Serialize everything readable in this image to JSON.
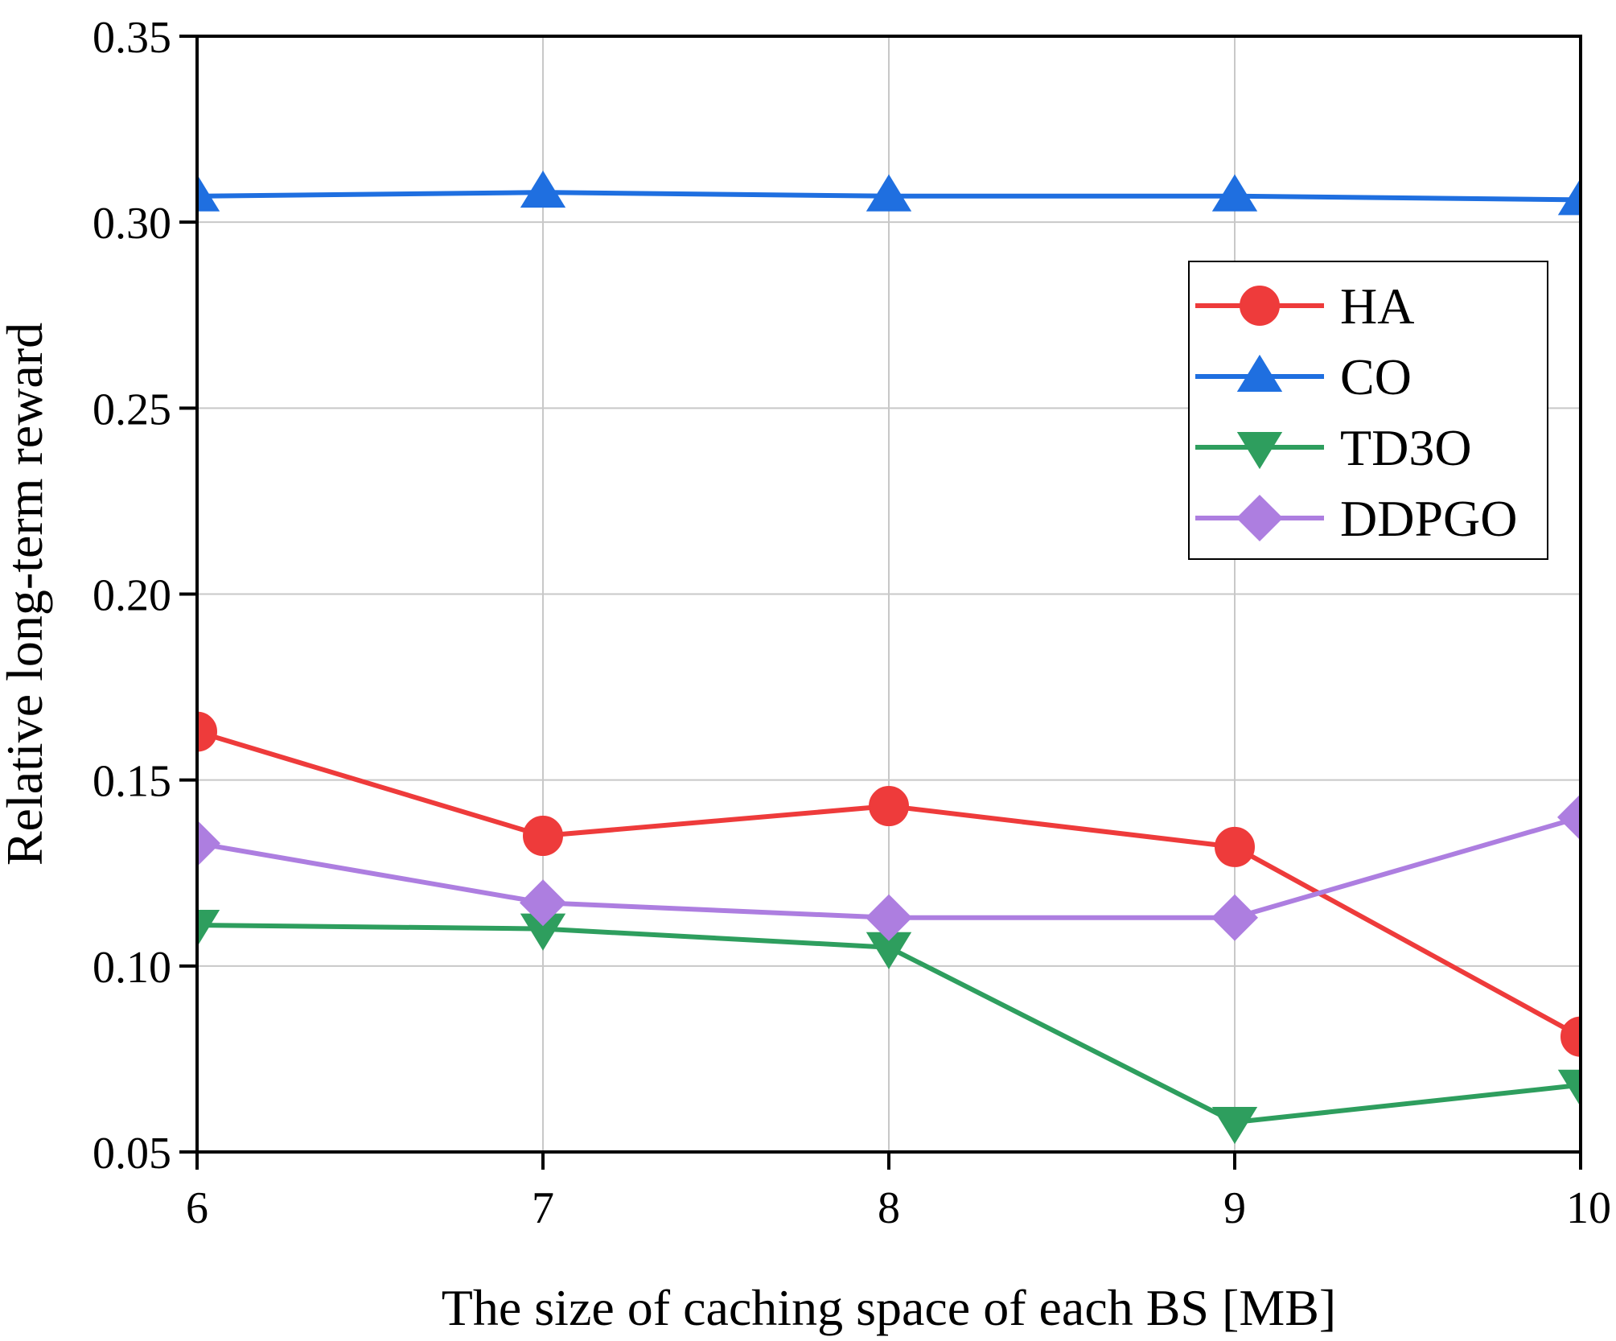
{
  "chart_data": {
    "type": "line",
    "title": "",
    "xlabel": "The size of caching space of each BS [MB]",
    "ylabel": "Relative long-term reward",
    "x": [
      6,
      7,
      8,
      9,
      10
    ],
    "x_tick_labels": [
      "6",
      "7",
      "8",
      "9",
      "10"
    ],
    "y_tick_labels": [
      "0.05",
      "0.10",
      "0.15",
      "0.20",
      "0.25",
      "0.30",
      "0.35"
    ],
    "xlim": [
      6,
      10
    ],
    "ylim": [
      0.05,
      0.35
    ],
    "grid": true,
    "legend_position": "top-right",
    "series": [
      {
        "name": "HA",
        "color": "#ee3b3b",
        "marker": "circle",
        "values": [
          0.163,
          0.135,
          0.143,
          0.132,
          0.081
        ]
      },
      {
        "name": "CO",
        "color": "#1f6fe0",
        "marker": "triangle-up",
        "values": [
          0.307,
          0.308,
          0.307,
          0.307,
          0.306
        ]
      },
      {
        "name": "TD3O",
        "color": "#2e9e5e",
        "marker": "triangle-down",
        "values": [
          0.111,
          0.11,
          0.105,
          0.058,
          0.068
        ]
      },
      {
        "name": "DDPGO",
        "color": "#ad7ee0",
        "marker": "diamond",
        "values": [
          0.133,
          0.117,
          0.113,
          0.113,
          0.14
        ]
      }
    ]
  }
}
